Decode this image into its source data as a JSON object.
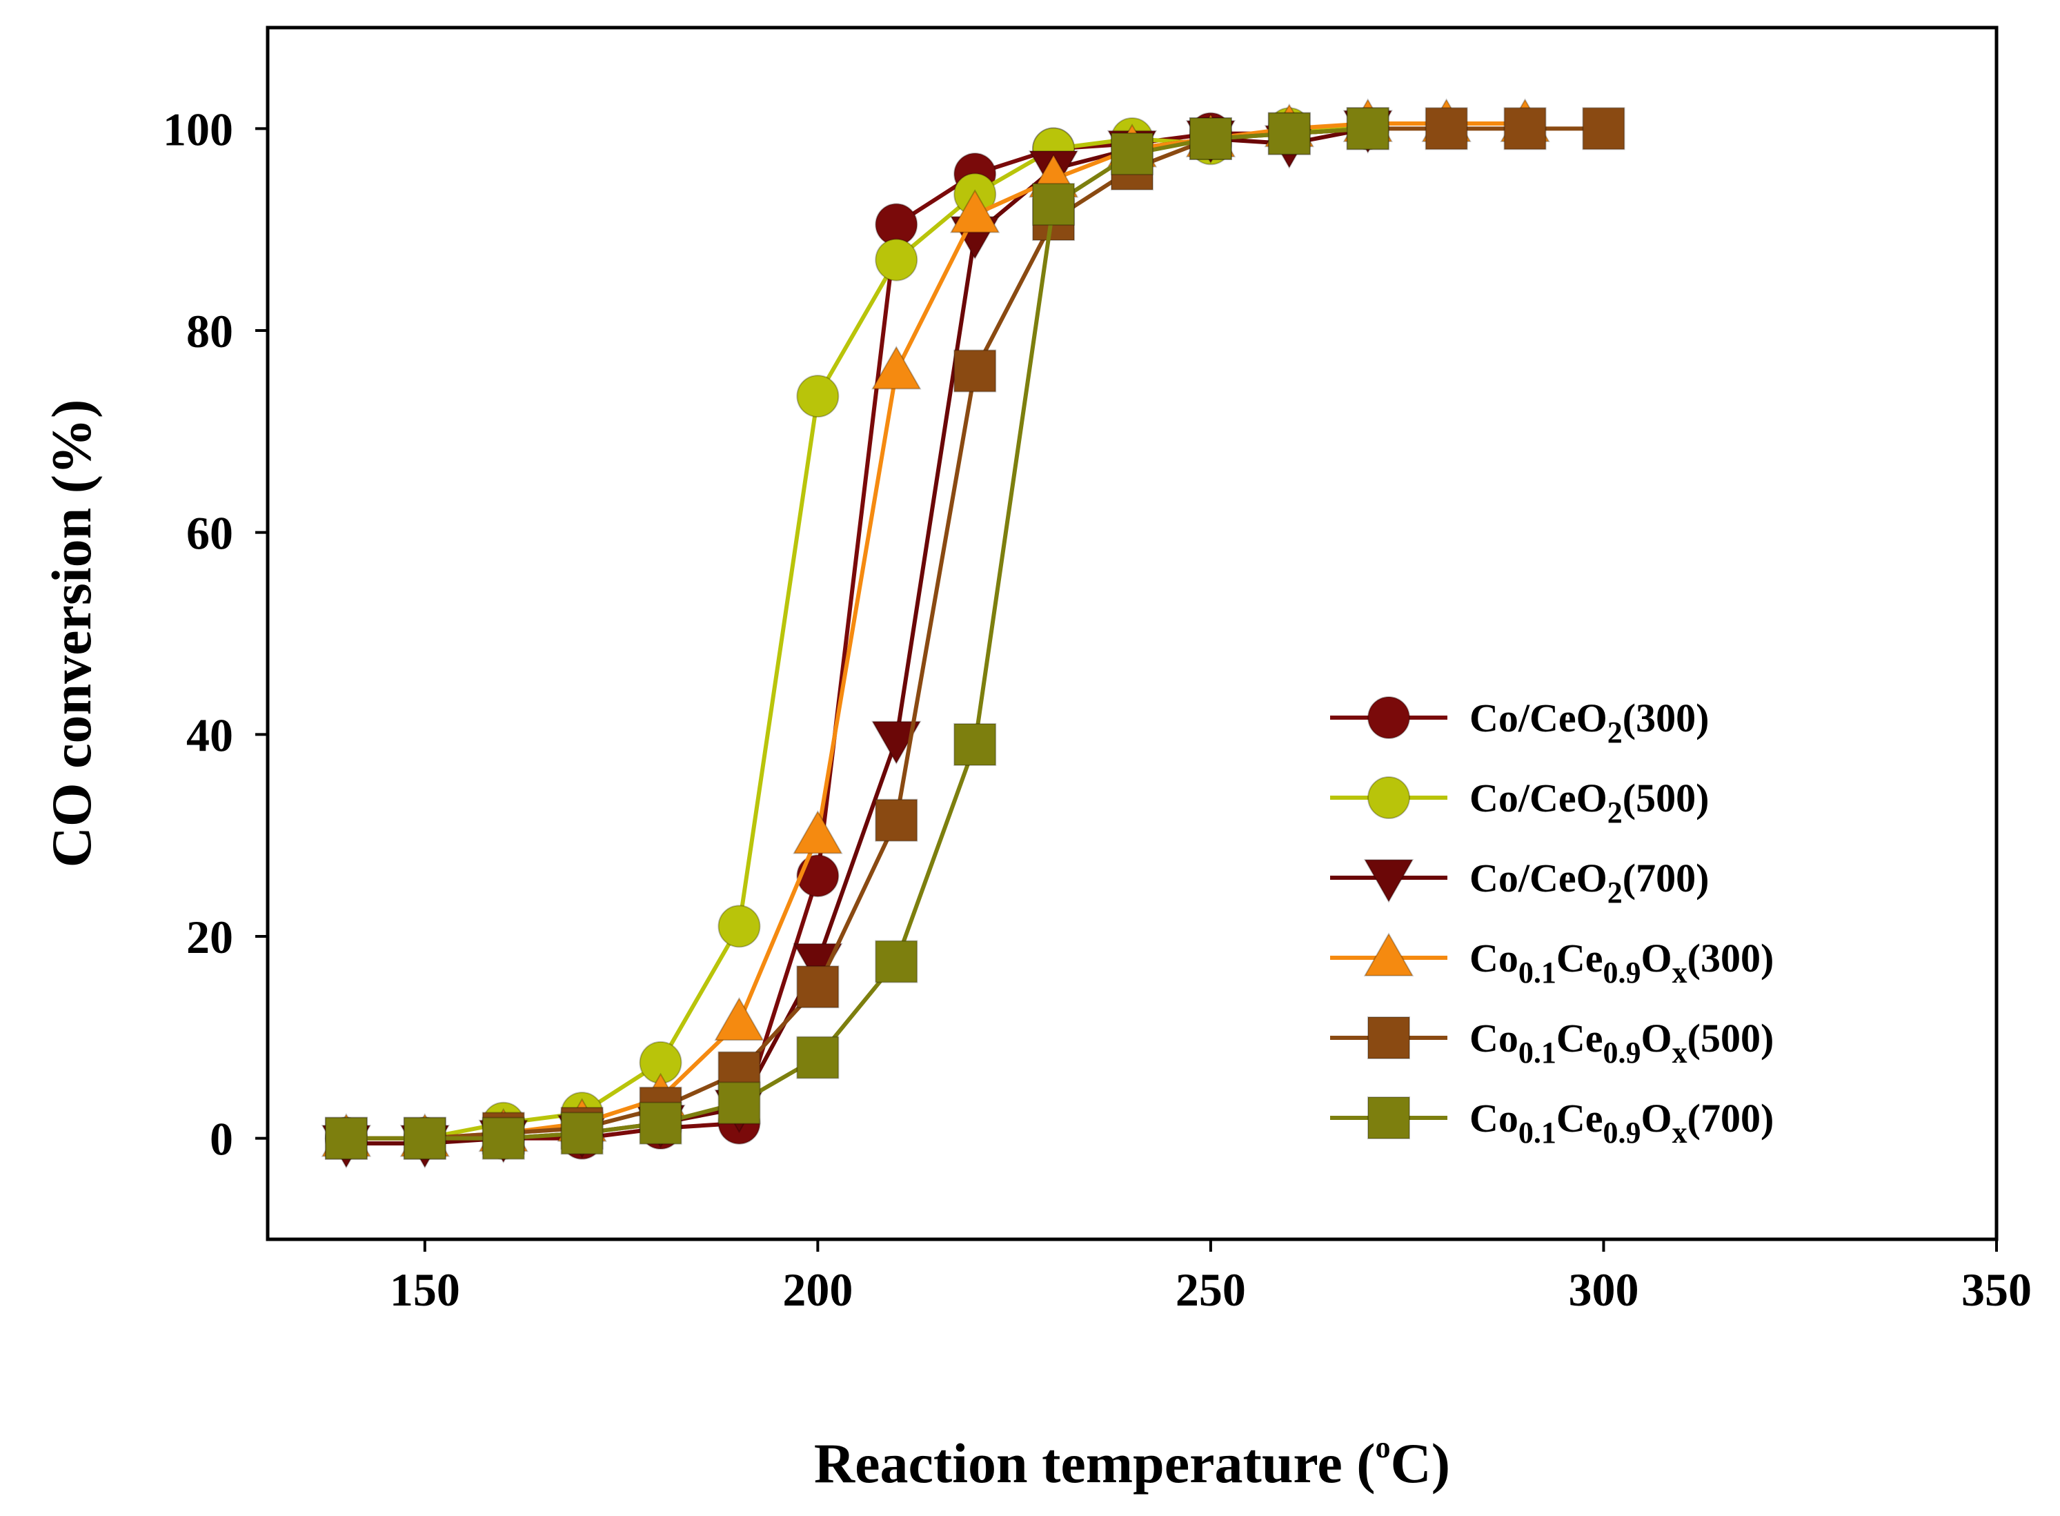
{
  "chart_data": {
    "type": "line",
    "title": "",
    "xlabel": "Reaction temperature",
    "xlabel_unit_sup": "o",
    "xlabel_unit": "C",
    "ylabel": "CO conversion (%)",
    "xlim": [
      130,
      350
    ],
    "ylim": [
      -10,
      110
    ],
    "xticks": [
      150,
      200,
      250,
      300,
      350
    ],
    "yticks": [
      0,
      20,
      40,
      60,
      80,
      100
    ],
    "grid": false,
    "legend_position": "center-right",
    "series": [
      {
        "name": "Co/CeO2(300)",
        "label_parts": [
          {
            "t": "Co/CeO",
            "sub": false
          },
          {
            "t": "2",
            "sub": true
          },
          {
            "t": "(300)",
            "sub": false
          }
        ],
        "color": "#7a0a0a",
        "marker": "circle",
        "x": [
          140,
          150,
          160,
          170,
          180,
          190,
          200,
          210,
          220,
          230,
          240,
          250,
          260,
          270
        ],
        "y": [
          0,
          0,
          0,
          0,
          1,
          1.5,
          26,
          90.5,
          95.5,
          98,
          98.5,
          99.5,
          99.5,
          100
        ]
      },
      {
        "name": "Co/CeO2(500)",
        "label_parts": [
          {
            "t": "Co/CeO",
            "sub": false
          },
          {
            "t": "2",
            "sub": true
          },
          {
            "t": "(500)",
            "sub": false
          }
        ],
        "color": "#b9c40a",
        "marker": "circle",
        "x": [
          140,
          150,
          160,
          170,
          180,
          190,
          200,
          210,
          220,
          230,
          240,
          250,
          260,
          270
        ],
        "y": [
          0,
          0,
          1.5,
          2.5,
          7.5,
          21,
          73.5,
          87,
          93.5,
          98,
          99,
          98.5,
          100,
          100
        ]
      },
      {
        "name": "Co/CeO2(700)",
        "label_parts": [
          {
            "t": "Co/CeO",
            "sub": false
          },
          {
            "t": "2",
            "sub": true
          },
          {
            "t": "(700)",
            "sub": false
          }
        ],
        "color": "#6b0707",
        "marker": "triangle-down",
        "x": [
          140,
          150,
          160,
          170,
          180,
          190,
          200,
          210,
          220,
          230,
          240,
          250,
          260,
          270
        ],
        "y": [
          -0.5,
          -0.5,
          0,
          0.5,
          1.5,
          3,
          17.5,
          39.5,
          89.5,
          96,
          98,
          99,
          98.5,
          100
        ]
      },
      {
        "name": "Co0.1Ce0.9Ox(300)",
        "label_parts": [
          {
            "t": "Co",
            "sub": false
          },
          {
            "t": "0.1",
            "sub": true
          },
          {
            "t": "Ce",
            "sub": false
          },
          {
            "t": "0.9",
            "sub": true
          },
          {
            "t": "O",
            "sub": false
          },
          {
            "t": "x",
            "sub": true
          },
          {
            "t": "(300)",
            "sub": false
          }
        ],
        "color": "#f58a10",
        "marker": "triangle-up",
        "x": [
          140,
          150,
          160,
          170,
          180,
          190,
          200,
          210,
          220,
          230,
          240,
          250,
          260,
          270,
          280,
          290
        ],
        "y": [
          0,
          0,
          0.5,
          1.5,
          4,
          11.5,
          30,
          76,
          91.5,
          95,
          98,
          99,
          100,
          100.5,
          100.5,
          100.5
        ]
      },
      {
        "name": "Co0.1Ce0.9Ox(500)",
        "label_parts": [
          {
            "t": "Co",
            "sub": false
          },
          {
            "t": "0.1",
            "sub": true
          },
          {
            "t": "Ce",
            "sub": false
          },
          {
            "t": "0.9",
            "sub": true
          },
          {
            "t": "O",
            "sub": false
          },
          {
            "t": "x",
            "sub": true
          },
          {
            "t": "(500)",
            "sub": false
          }
        ],
        "color": "#8a4a12",
        "marker": "square",
        "x": [
          140,
          150,
          160,
          170,
          180,
          190,
          200,
          210,
          220,
          230,
          240,
          250,
          260,
          270,
          280,
          290,
          300
        ],
        "y": [
          0,
          0,
          0.5,
          1,
          3,
          6.5,
          15,
          31.5,
          76,
          91,
          96,
          99,
          99.5,
          100,
          100,
          100,
          100
        ]
      },
      {
        "name": "Co0.1Ce0.9Ox(700)",
        "label_parts": [
          {
            "t": "Co",
            "sub": false
          },
          {
            "t": "0.1",
            "sub": true
          },
          {
            "t": "Ce",
            "sub": false
          },
          {
            "t": "0.9",
            "sub": true
          },
          {
            "t": "O",
            "sub": false
          },
          {
            "t": "x",
            "sub": true
          },
          {
            "t": "(700)",
            "sub": false
          }
        ],
        "color": "#7d7f0e",
        "marker": "square",
        "x": [
          140,
          150,
          160,
          170,
          180,
          190,
          200,
          210,
          220,
          230,
          240,
          250,
          260,
          270
        ],
        "y": [
          0,
          0,
          0,
          0.5,
          1.5,
          3.5,
          8,
          17.5,
          39,
          92.5,
          97.5,
          99,
          99.5,
          100
        ]
      }
    ]
  }
}
